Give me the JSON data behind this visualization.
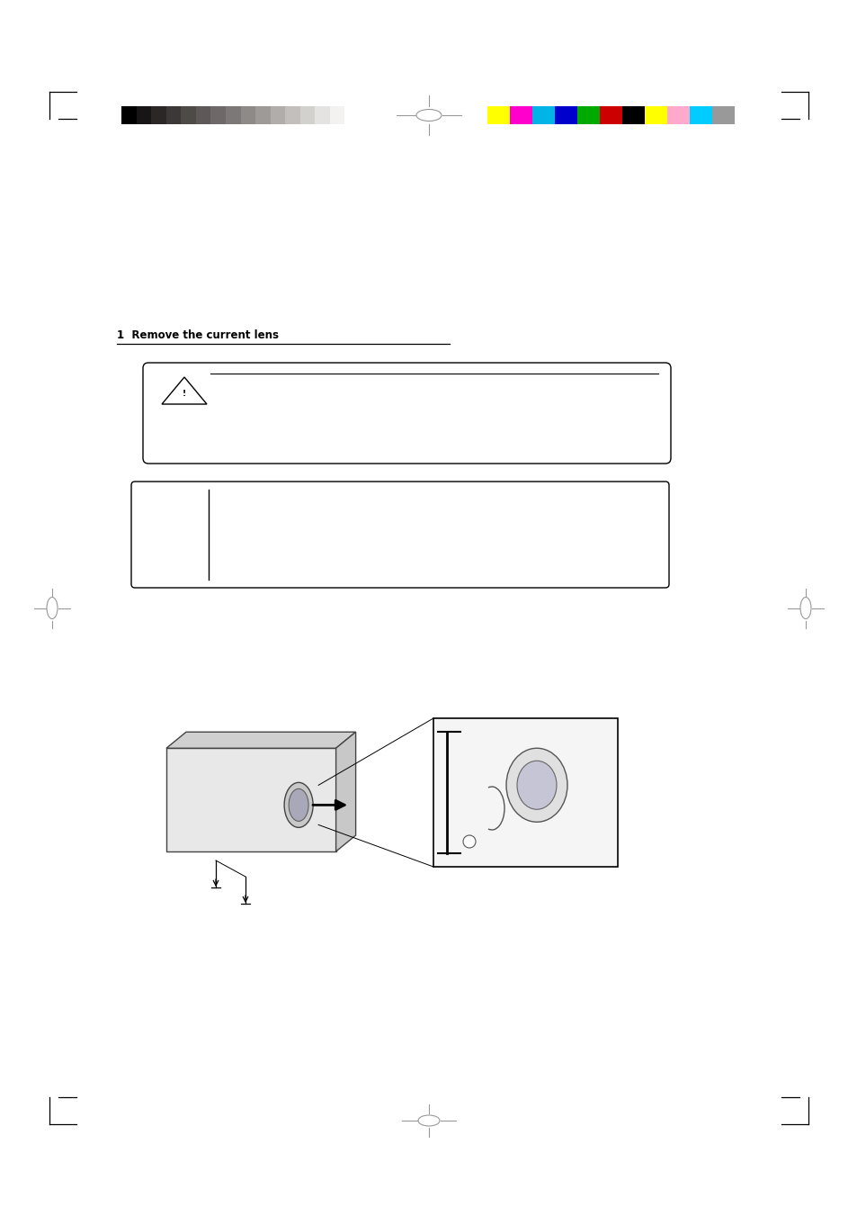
{
  "bg_color": "#ffffff",
  "page_width": 9.54,
  "page_height": 13.51,
  "grayscale_colors": [
    "#000000",
    "#181516",
    "#2b2727",
    "#3c3837",
    "#4e4a48",
    "#5e5958",
    "#6e6968",
    "#7c7877",
    "#8e8a88",
    "#9e9a98",
    "#b0adab",
    "#c2bfbd",
    "#d3d1ce",
    "#e5e3e1",
    "#f3f2f0",
    "#ffffff"
  ],
  "color_swatches": [
    "#ffff00",
    "#ff00cc",
    "#00b4e8",
    "#0000cc",
    "#00aa00",
    "#cc0000",
    "#000000",
    "#ffff00",
    "#ffaacc",
    "#00ccff",
    "#999999"
  ],
  "section_title": "1  Remove the current lens"
}
